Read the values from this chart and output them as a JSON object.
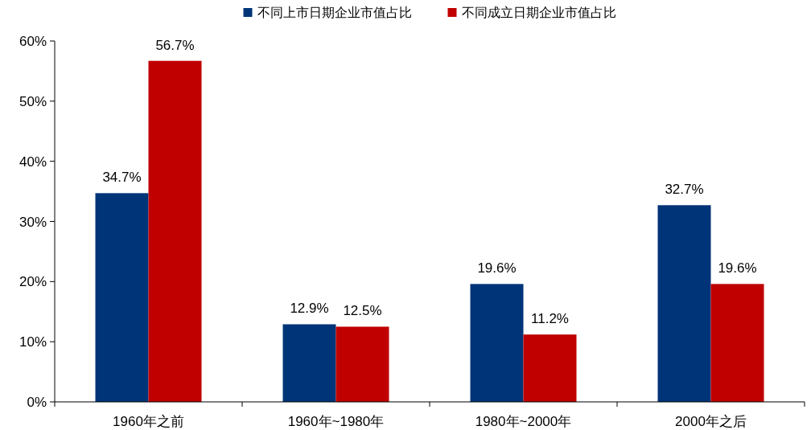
{
  "chart_data": {
    "type": "bar",
    "categories": [
      "1960年之前",
      "1960年~1980年",
      "1980年~2000年",
      "2000年之后"
    ],
    "series": [
      {
        "name": "不同上市日期企业市值占比",
        "color": "#003478",
        "values": [
          34.7,
          12.9,
          19.6,
          32.7
        ],
        "value_labels": [
          "34.7%",
          "12.9%",
          "19.6%",
          "32.7%"
        ]
      },
      {
        "name": "不同成立日期企业市值占比",
        "color": "#c00000",
        "values": [
          56.7,
          12.5,
          11.2,
          19.6
        ],
        "value_labels": [
          "56.7%",
          "12.5%",
          "11.2%",
          "19.6%"
        ]
      }
    ],
    "ylim": [
      0,
      60
    ],
    "yticks": [
      {
        "value": 0,
        "label": "0%"
      },
      {
        "value": 10,
        "label": "10%"
      },
      {
        "value": 20,
        "label": "20%"
      },
      {
        "value": 30,
        "label": "30%"
      },
      {
        "value": 40,
        "label": "40%"
      },
      {
        "value": 50,
        "label": "50%"
      },
      {
        "value": 60,
        "label": "60%"
      }
    ],
    "legend": "top",
    "grid": false
  }
}
